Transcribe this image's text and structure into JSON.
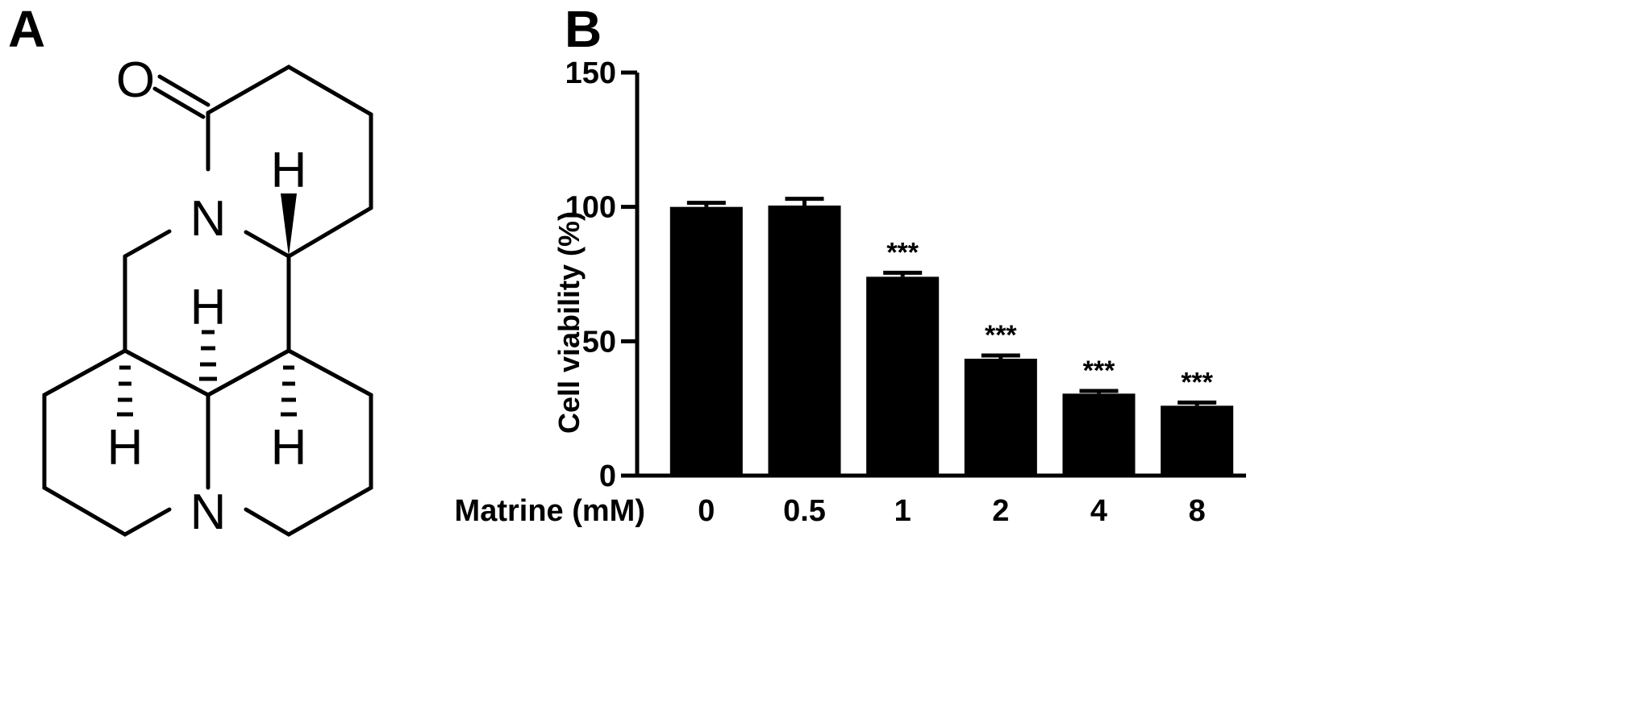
{
  "panels": {
    "a": "A",
    "b": "B"
  },
  "molecule": {
    "atoms": {
      "oxygen": "O",
      "nitrogen": "N",
      "hydrogen": "H"
    }
  },
  "chart_data": {
    "type": "bar",
    "categories": [
      "0",
      "0.5",
      "1",
      "2",
      "4",
      "8"
    ],
    "values": [
      100,
      100.5,
      74,
      43.5,
      30.5,
      26
    ],
    "errors": [
      1.5,
      2.5,
      1.5,
      1.2,
      1.0,
      1.2
    ],
    "significance": [
      "",
      "",
      "***",
      "***",
      "***",
      "***"
    ],
    "xlabel": "Matrine (mM)",
    "ylabel": "Cell viability (%)",
    "ylim": [
      0,
      150
    ],
    "yticks": [
      0,
      50,
      100,
      150
    ],
    "bar_color": "#000000",
    "grid": false
  }
}
